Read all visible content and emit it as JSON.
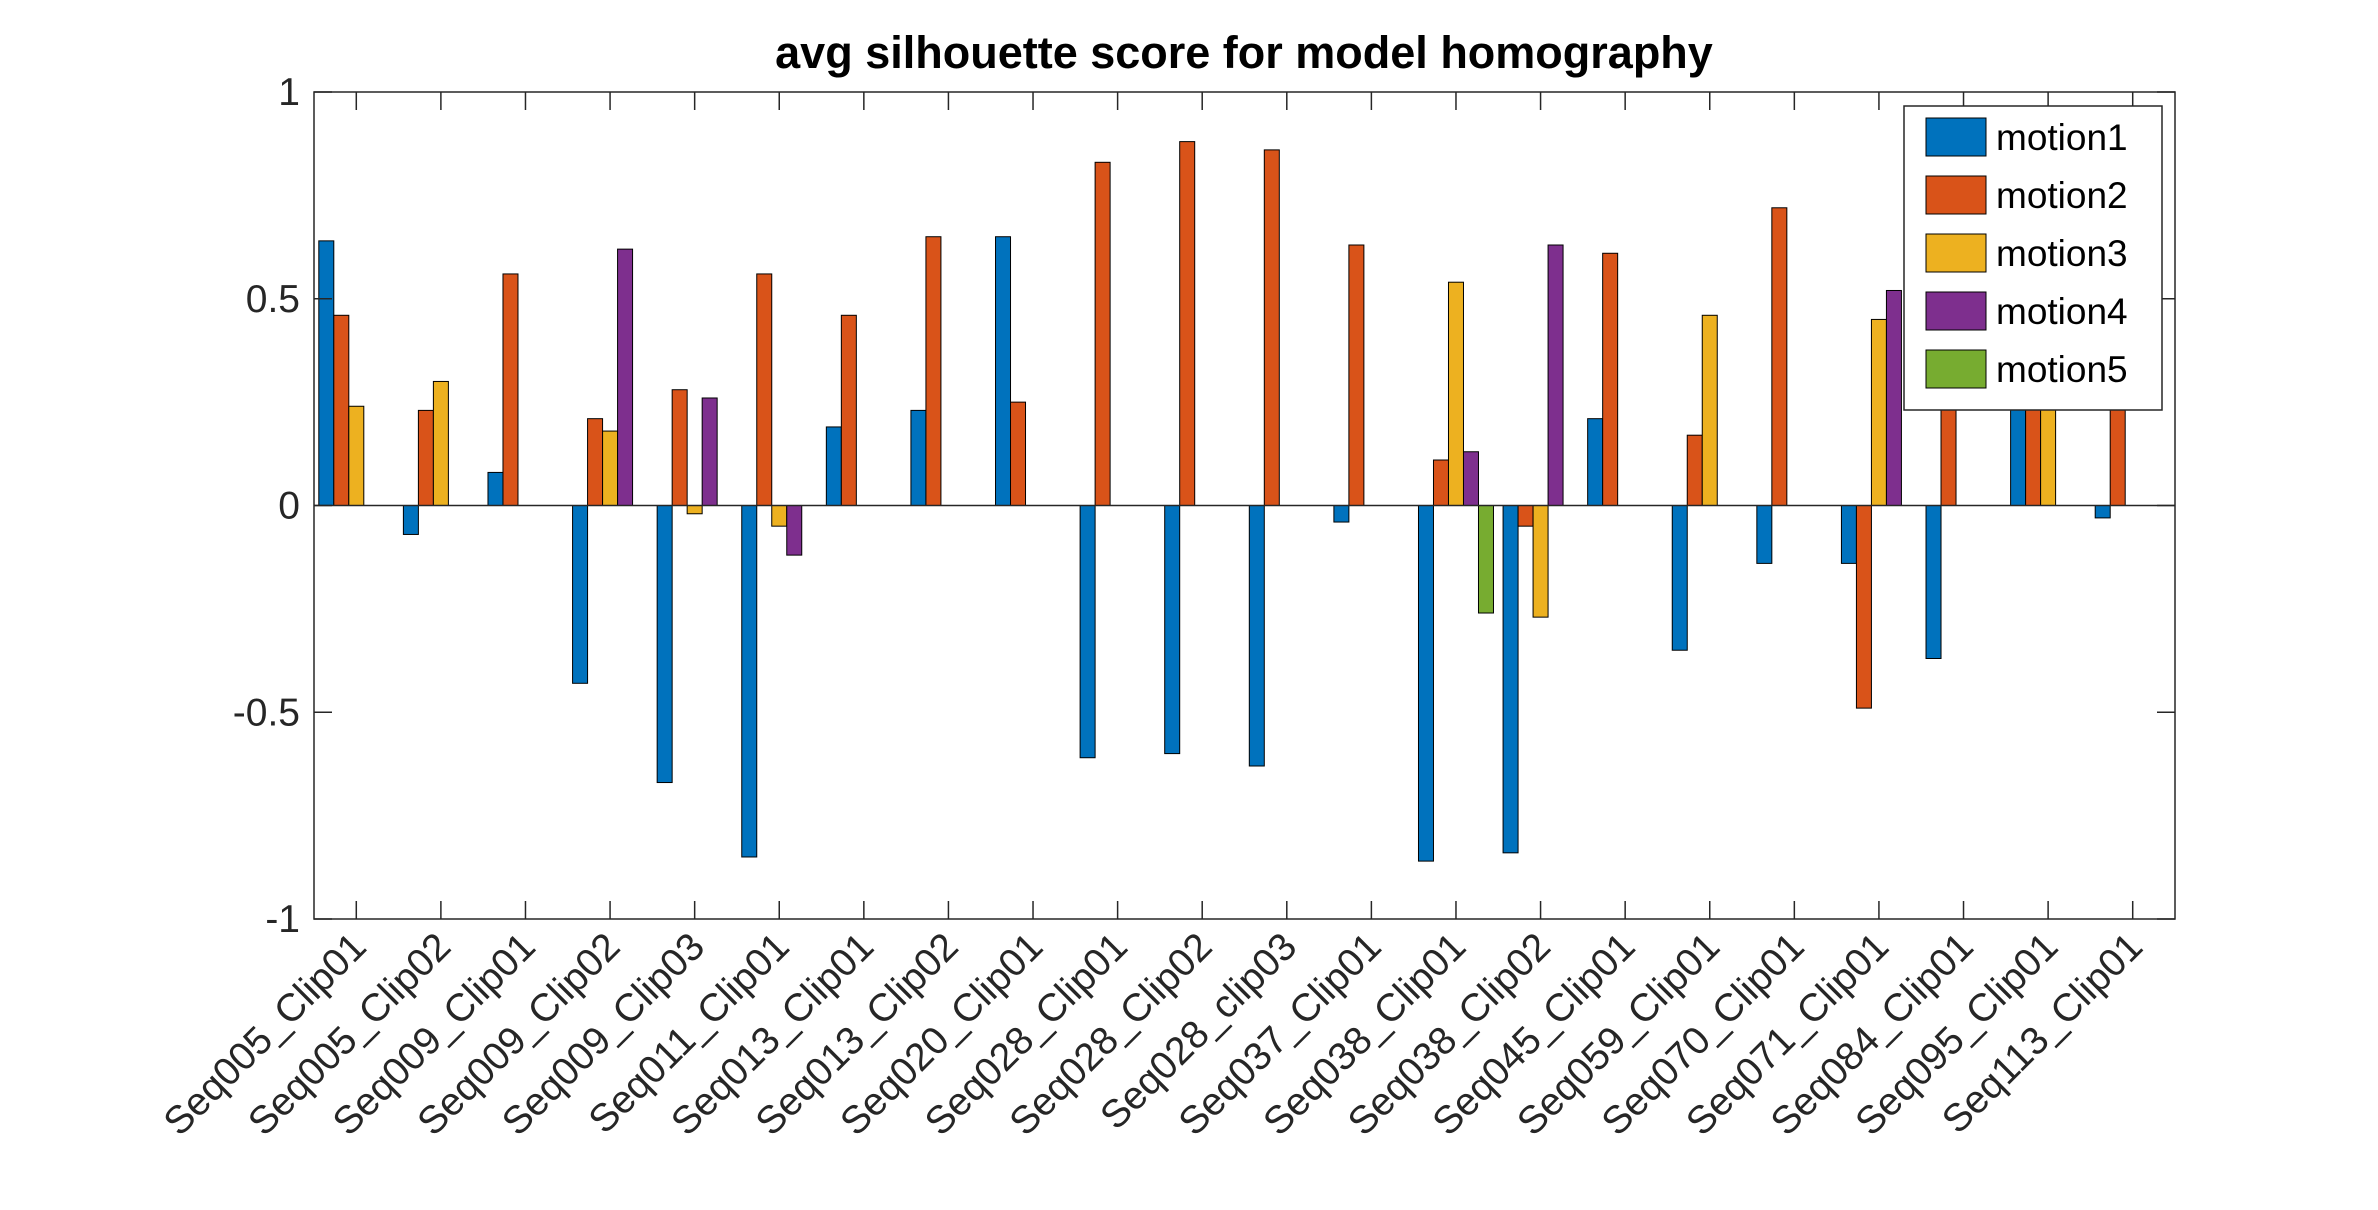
{
  "chart_data": {
    "type": "bar",
    "title": "avg silhouette score for model homography",
    "xlabel": "",
    "ylabel": "",
    "ylim": [
      -1,
      1
    ],
    "yticks": [
      "-1",
      "-0.5",
      "0",
      "0.5",
      "1"
    ],
    "legend_position": "top-right",
    "grid": false,
    "categories": [
      "Seq005_Clip01",
      "Seq005_Clip02",
      "Seq009_Clip01",
      "Seq009_Clip02",
      "Seq009_Clip03",
      "Seq011_Clip01",
      "Seq013_Clip01",
      "Seq013_Clip02",
      "Seq020_Clip01",
      "Seq028_Clip01",
      "Seq028_Clip02",
      "Seq028_clip03",
      "Seq037_Clip01",
      "Seq038_Clip01",
      "Seq038_Clip02",
      "Seq045_Clip01",
      "Seq059_Clip01",
      "Seq070_Clip01",
      "Seq071_Clip01",
      "Seq084_Clip01",
      "Seq095_Clip01",
      "Seq113_Clip01"
    ],
    "series": [
      {
        "name": "motion1",
        "color": "#0072BD",
        "values": [
          0.64,
          -0.07,
          0.08,
          -0.43,
          -0.67,
          -0.85,
          0.19,
          0.23,
          0.65,
          -0.61,
          -0.6,
          -0.63,
          -0.04,
          -0.86,
          -0.84,
          0.21,
          -0.35,
          -0.14,
          -0.14,
          -0.37,
          0.4,
          -0.03
        ]
      },
      {
        "name": "motion2",
        "color": "#D95319",
        "values": [
          0.46,
          0.23,
          0.56,
          0.21,
          0.28,
          0.56,
          0.46,
          0.65,
          0.25,
          0.83,
          0.88,
          0.86,
          0.63,
          0.11,
          -0.05,
          0.61,
          0.17,
          0.72,
          -0.49,
          0.3,
          0.4,
          0.3
        ]
      },
      {
        "name": "motion3",
        "color": "#EDB120",
        "values": [
          0.24,
          0.3,
          0,
          0.18,
          -0.02,
          -0.05,
          0,
          0,
          0,
          0,
          0,
          0,
          0,
          0.54,
          -0.27,
          0,
          0.46,
          0,
          0.45,
          0,
          0.4,
          0
        ]
      },
      {
        "name": "motion4",
        "color": "#7E2F8E",
        "values": [
          0,
          0,
          0,
          0.62,
          0.26,
          -0.12,
          0,
          0,
          0,
          0,
          0,
          0,
          0,
          0.13,
          0.63,
          0,
          0,
          0,
          0.52,
          0,
          0,
          0
        ]
      },
      {
        "name": "motion5",
        "color": "#77AC30",
        "values": [
          0,
          0,
          0,
          0,
          0,
          0,
          0,
          0,
          0,
          0,
          0,
          0,
          0,
          -0.26,
          0,
          0,
          0,
          0,
          0,
          0,
          0,
          0
        ]
      }
    ]
  }
}
